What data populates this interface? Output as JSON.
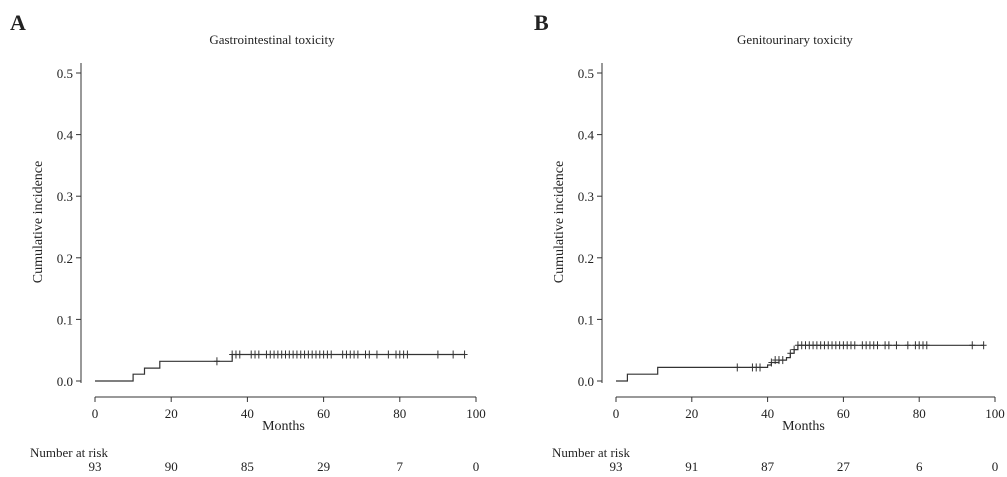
{
  "chart_data": [
    {
      "panel_label": "A",
      "type": "line",
      "title": "Gastrointestinal toxicity",
      "xlabel": "Months",
      "ylabel": "Cumulative incidence",
      "xlim": [
        0,
        100
      ],
      "ylim": [
        0,
        0.5
      ],
      "x_ticks": [
        "0",
        "20",
        "40",
        "60",
        "80",
        "100"
      ],
      "y_ticks": [
        "0.0",
        "0.1",
        "0.2",
        "0.3",
        "0.4",
        "0.5"
      ],
      "grid": false,
      "series": [
        {
          "step_x": [
            0,
            10,
            10,
            13,
            13,
            17,
            17,
            36,
            36,
            97
          ],
          "step_y": [
            0,
            0,
            0.011,
            0.011,
            0.021,
            0.021,
            0.032,
            0.032,
            0.043,
            0.043
          ],
          "censored": [
            {
              "x": 32,
              "y": 0.032
            },
            {
              "x": 36,
              "y": 0.043
            },
            {
              "x": 37,
              "y": 0.043
            },
            {
              "x": 38,
              "y": 0.043
            },
            {
              "x": 41,
              "y": 0.043
            },
            {
              "x": 42,
              "y": 0.043
            },
            {
              "x": 43,
              "y": 0.043
            },
            {
              "x": 45,
              "y": 0.043
            },
            {
              "x": 46,
              "y": 0.043
            },
            {
              "x": 47,
              "y": 0.043
            },
            {
              "x": 48,
              "y": 0.043
            },
            {
              "x": 49,
              "y": 0.043
            },
            {
              "x": 50,
              "y": 0.043
            },
            {
              "x": 51,
              "y": 0.043
            },
            {
              "x": 52,
              "y": 0.043
            },
            {
              "x": 53,
              "y": 0.043
            },
            {
              "x": 54,
              "y": 0.043
            },
            {
              "x": 55,
              "y": 0.043
            },
            {
              "x": 56,
              "y": 0.043
            },
            {
              "x": 57,
              "y": 0.043
            },
            {
              "x": 58,
              "y": 0.043
            },
            {
              "x": 59,
              "y": 0.043
            },
            {
              "x": 60,
              "y": 0.043
            },
            {
              "x": 61,
              "y": 0.043
            },
            {
              "x": 62,
              "y": 0.043
            },
            {
              "x": 65,
              "y": 0.043
            },
            {
              "x": 66,
              "y": 0.043
            },
            {
              "x": 67,
              "y": 0.043
            },
            {
              "x": 68,
              "y": 0.043
            },
            {
              "x": 69,
              "y": 0.043
            },
            {
              "x": 71,
              "y": 0.043
            },
            {
              "x": 72,
              "y": 0.043
            },
            {
              "x": 74,
              "y": 0.043
            },
            {
              "x": 77,
              "y": 0.043
            },
            {
              "x": 79,
              "y": 0.043
            },
            {
              "x": 80,
              "y": 0.043
            },
            {
              "x": 81,
              "y": 0.043
            },
            {
              "x": 82,
              "y": 0.043
            },
            {
              "x": 90,
              "y": 0.043
            },
            {
              "x": 94,
              "y": 0.043
            },
            {
              "x": 97,
              "y": 0.043
            }
          ]
        }
      ],
      "risk_table": {
        "label": "Number at risk",
        "times": [
          0,
          20,
          40,
          60,
          80,
          100
        ],
        "values": [
          "93",
          "90",
          "85",
          "29",
          "7",
          "0"
        ]
      }
    },
    {
      "panel_label": "B",
      "type": "line",
      "title": "Genitourinary toxicity",
      "xlabel": "Months",
      "ylabel": "Cumulative incidence",
      "xlim": [
        0,
        100
      ],
      "ylim": [
        0,
        0.5
      ],
      "x_ticks": [
        "0",
        "20",
        "40",
        "60",
        "80",
        "100"
      ],
      "y_ticks": [
        "0.0",
        "0.1",
        "0.2",
        "0.3",
        "0.4",
        "0.5"
      ],
      "grid": false,
      "series": [
        {
          "step_x": [
            0,
            3,
            3,
            11,
            11,
            40,
            40,
            41,
            41,
            43,
            43,
            45,
            45,
            46,
            46,
            47,
            47,
            48,
            48,
            97
          ],
          "step_y": [
            0,
            0,
            0.011,
            0.011,
            0.022,
            0.022,
            0.026,
            0.026,
            0.03,
            0.03,
            0.034,
            0.034,
            0.038,
            0.038,
            0.045,
            0.045,
            0.051,
            0.051,
            0.058,
            0.058
          ],
          "censored": [
            {
              "x": 32,
              "y": 0.022
            },
            {
              "x": 36,
              "y": 0.022
            },
            {
              "x": 37,
              "y": 0.022
            },
            {
              "x": 38,
              "y": 0.022
            },
            {
              "x": 41,
              "y": 0.03
            },
            {
              "x": 42,
              "y": 0.034
            },
            {
              "x": 43,
              "y": 0.034
            },
            {
              "x": 44,
              "y": 0.034
            },
            {
              "x": 46,
              "y": 0.045
            },
            {
              "x": 47,
              "y": 0.051
            },
            {
              "x": 48,
              "y": 0.058
            },
            {
              "x": 49,
              "y": 0.058
            },
            {
              "x": 50,
              "y": 0.058
            },
            {
              "x": 51,
              "y": 0.058
            },
            {
              "x": 52,
              "y": 0.058
            },
            {
              "x": 53,
              "y": 0.058
            },
            {
              "x": 54,
              "y": 0.058
            },
            {
              "x": 55,
              "y": 0.058
            },
            {
              "x": 56,
              "y": 0.058
            },
            {
              "x": 57,
              "y": 0.058
            },
            {
              "x": 58,
              "y": 0.058
            },
            {
              "x": 59,
              "y": 0.058
            },
            {
              "x": 60,
              "y": 0.058
            },
            {
              "x": 61,
              "y": 0.058
            },
            {
              "x": 62,
              "y": 0.058
            },
            {
              "x": 63,
              "y": 0.058
            },
            {
              "x": 65,
              "y": 0.058
            },
            {
              "x": 66,
              "y": 0.058
            },
            {
              "x": 67,
              "y": 0.058
            },
            {
              "x": 68,
              "y": 0.058
            },
            {
              "x": 69,
              "y": 0.058
            },
            {
              "x": 71,
              "y": 0.058
            },
            {
              "x": 72,
              "y": 0.058
            },
            {
              "x": 74,
              "y": 0.058
            },
            {
              "x": 77,
              "y": 0.058
            },
            {
              "x": 79,
              "y": 0.058
            },
            {
              "x": 80,
              "y": 0.058
            },
            {
              "x": 81,
              "y": 0.058
            },
            {
              "x": 82,
              "y": 0.058
            },
            {
              "x": 94,
              "y": 0.058
            },
            {
              "x": 97,
              "y": 0.058
            }
          ]
        }
      ],
      "risk_table": {
        "label": "Number at risk",
        "times": [
          0,
          20,
          40,
          60,
          80,
          100
        ],
        "values": [
          "93",
          "91",
          "87",
          "27",
          "6",
          "0"
        ]
      }
    }
  ]
}
